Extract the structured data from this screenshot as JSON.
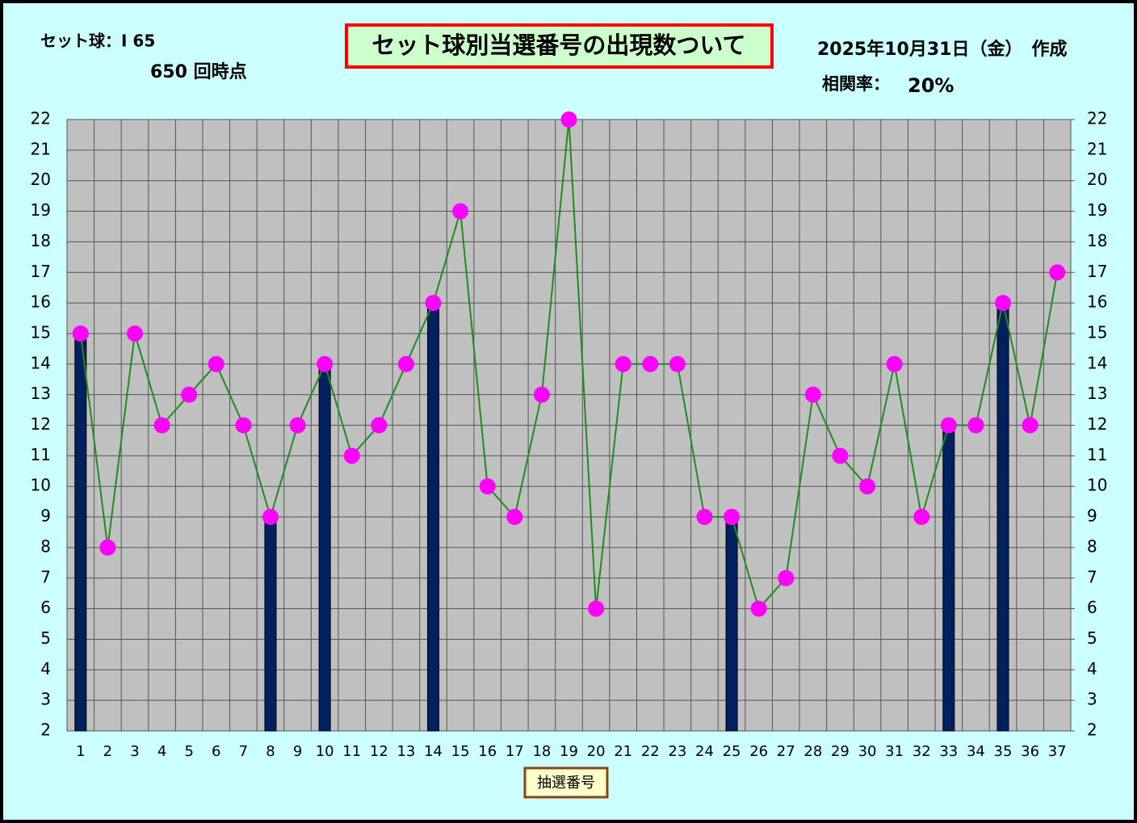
{
  "chart_data": {
    "type": "bar+line",
    "title": "セット球別当選番号の出現数ついて",
    "annotations": [
      "セット球：I 65",
      "650 回時点",
      "2025年10月31日（金）　作成",
      "相関率：",
      "20%"
    ],
    "x_label": "抽選番号",
    "categories": [
      "1",
      "2",
      "3",
      "4",
      "5",
      "6",
      "7",
      "8",
      "9",
      "10",
      "11",
      "12",
      "13",
      "14",
      "15",
      "16",
      "17",
      "18",
      "19",
      "20",
      "21",
      "22",
      "23",
      "24",
      "25",
      "26",
      "27",
      "28",
      "29",
      "30",
      "31",
      "32",
      "33",
      "34",
      "35",
      "36",
      "37"
    ],
    "series": [
      {
        "type": "bar",
        "color": "#002060",
        "values": [
          15,
          null,
          null,
          null,
          null,
          null,
          null,
          9,
          null,
          14,
          null,
          null,
          null,
          16,
          null,
          null,
          null,
          null,
          null,
          null,
          null,
          null,
          null,
          null,
          9,
          null,
          null,
          null,
          null,
          null,
          null,
          null,
          12,
          null,
          16,
          null,
          null
        ]
      },
      {
        "type": "line",
        "color": "#1e8c1e",
        "marker_color": "#ff00ff",
        "values": [
          15,
          8,
          15,
          12,
          13,
          14,
          12,
          9,
          12,
          14,
          11,
          12,
          14,
          16,
          19,
          10,
          9,
          13,
          22,
          6,
          14,
          14,
          14,
          9,
          9,
          6,
          7,
          13,
          11,
          10,
          14,
          9,
          12,
          12,
          16,
          12,
          17
        ]
      }
    ],
    "ylim": [
      2,
      22
    ],
    "yticks": [
      2,
      3,
      4,
      5,
      6,
      7,
      8,
      9,
      10,
      11,
      12,
      13,
      14,
      15,
      16,
      17,
      18,
      19,
      20,
      21,
      22
    ],
    "y2lim": [
      2,
      22
    ],
    "y2ticks": [
      2,
      3,
      4,
      5,
      6,
      7,
      8,
      9,
      10,
      11,
      12,
      13,
      14,
      15,
      16,
      17,
      18,
      19,
      20,
      21,
      22
    ],
    "grid": true
  }
}
